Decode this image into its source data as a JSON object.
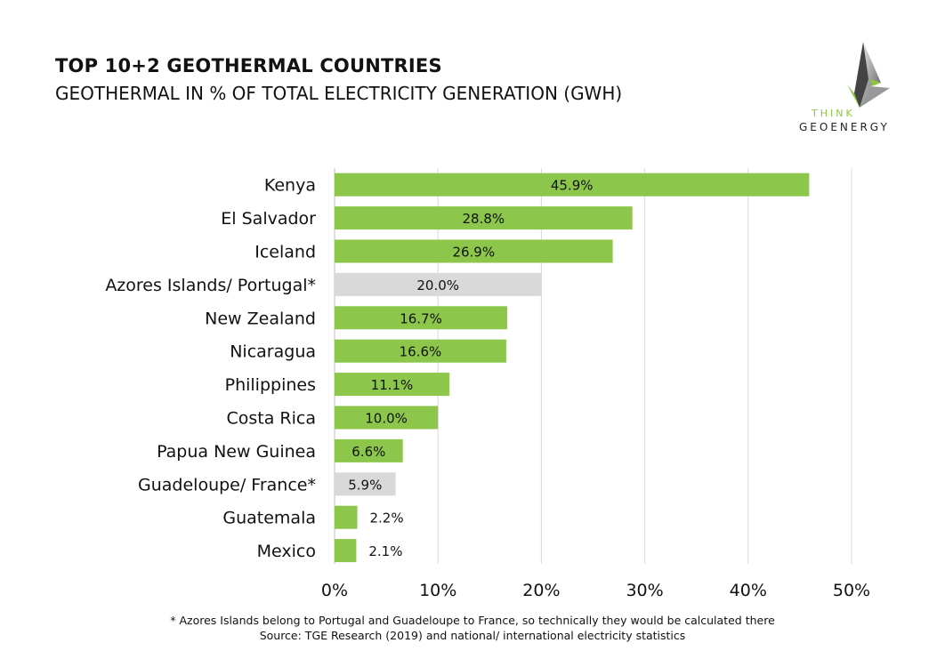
{
  "header": {
    "title": "TOP 10+2 GEOTHERMAL COUNTRIES",
    "subtitle": "GEOTHERMAL IN % OF TOTAL ELECTRICITY GENERATION (GWH)"
  },
  "logo": {
    "line1": "THINK",
    "line2": "GEOENERGY"
  },
  "chart_data": {
    "type": "bar",
    "orientation": "horizontal",
    "categories": [
      "Kenya",
      "El Salvador",
      "Iceland",
      "Azores Islands/ Portugal*",
      "New Zealand",
      "Nicaragua",
      "Philippines",
      "Costa Rica",
      "Papua New Guinea",
      "Guadeloupe/ France*",
      "Guatemala",
      "Mexico"
    ],
    "values": [
      45.9,
      28.8,
      26.9,
      20.0,
      16.7,
      16.6,
      11.1,
      10.0,
      6.6,
      5.9,
      2.2,
      2.1
    ],
    "data_labels": [
      "45.9%",
      "28.8%",
      "26.9%",
      "20.0%",
      "16.7%",
      "16.6%",
      "11.1%",
      "10.0%",
      "6.6%",
      "5.9%",
      "2.2%",
      "2.1%"
    ],
    "bar_colors": [
      "#8cc64b",
      "#8cc64b",
      "#8cc64b",
      "#d9d9d9",
      "#8cc64b",
      "#8cc64b",
      "#8cc64b",
      "#8cc64b",
      "#8cc64b",
      "#d9d9d9",
      "#8cc64b",
      "#8cc64b"
    ],
    "xlim": [
      0,
      50
    ],
    "x_ticks": [
      "0%",
      "10%",
      "20%",
      "30%",
      "40%",
      "50%"
    ],
    "grid": true
  },
  "footer": {
    "note": "* Azores Islands belong to Portugal and Guadeloupe to France, so technically they would be calculated there",
    "source": "Source: TGE Research (2019) and national/ international electricity statistics"
  }
}
